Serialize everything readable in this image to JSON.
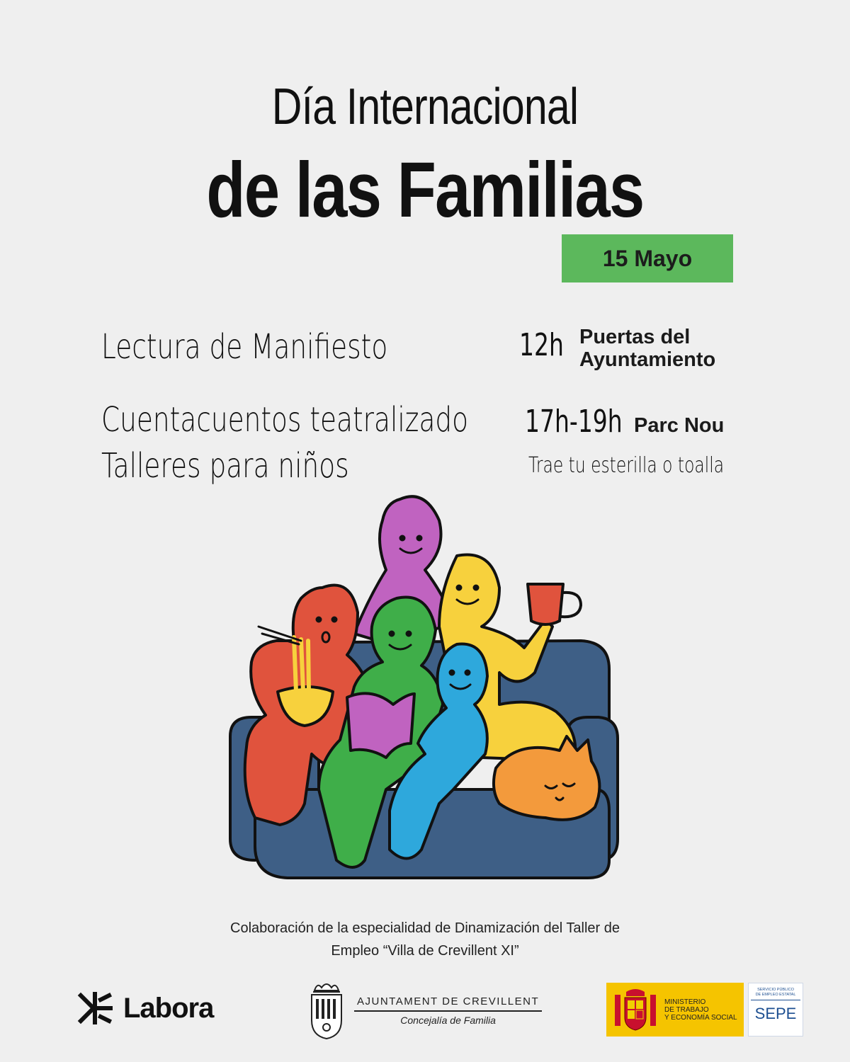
{
  "header": {
    "title_line1": "Día Internacional",
    "title_line2": "de las Familias",
    "date": "15 Mayo"
  },
  "events": [
    {
      "activity": "Lectura de Manifiesto",
      "time": "12h",
      "place_line1": "Puertas del",
      "place_line2": "Ayuntamiento"
    },
    {
      "activity_line1": "Cuentacuentos teatralizado",
      "activity_line2": "Talleres para niños",
      "time": "17h-19h",
      "place": "Parc Nou",
      "note": "Trae tu esterilla o toalla"
    }
  ],
  "credit": {
    "line1": "Colaboración de la especialidad de Dinamización del Taller de",
    "line2": "Empleo “Villa de Crevillent XI”"
  },
  "logos": {
    "labora": "Labora",
    "ajuntament_name": "AJUNTAMENT DE CREVILLENT",
    "ajuntament_sub": "Concejalía de Familia",
    "ministerio_lines": [
      "MINISTERIO",
      "DE TRABAJO",
      "Y ECONOMÍA SOCIAL"
    ],
    "sepe_small_lines": [
      "SERVICIO PÚBLICO",
      "DE EMPLEO ESTATAL"
    ],
    "sepe": "SEPE"
  },
  "colors": {
    "background": "#efefef",
    "badge": "#5cb85c",
    "purple": "#c063c0",
    "red": "#e0533d",
    "green": "#3fae49",
    "yellow": "#f7d13d",
    "blue": "#2ea8dc",
    "orange": "#f39a3c",
    "sofa": "#3e5f86"
  }
}
